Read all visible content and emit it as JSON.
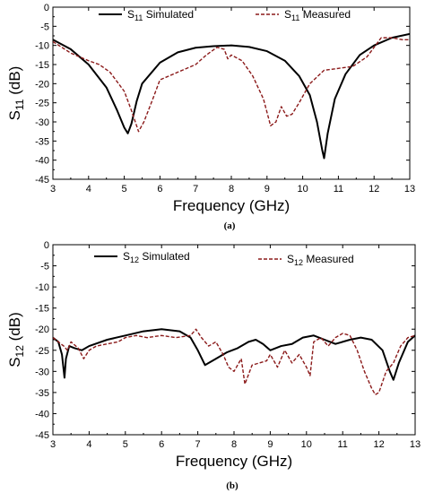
{
  "chart_data": [
    {
      "type": "line",
      "caption": "(a)",
      "xlabel": "Frequency (GHz)",
      "ylabel": {
        "main": "S",
        "sub": "11",
        "unit": " (dB)"
      },
      "xlim": [
        3,
        13
      ],
      "ylim": [
        -45,
        0
      ],
      "xticks": [
        "3",
        "4",
        "5",
        "6",
        "7",
        "8",
        "9",
        "10",
        "11",
        "12",
        "13"
      ],
      "yticks": [
        "0",
        "-5",
        "-10",
        "-15",
        "-20",
        "-25",
        "-30",
        "-35",
        "-40",
        "-45"
      ],
      "legend": [
        {
          "main": "S",
          "sub": "11",
          "rest": " Simulated",
          "style": "solid"
        },
        {
          "main": "S",
          "sub": "11",
          "rest": " Measured",
          "style": "dashed"
        }
      ],
      "series": [
        {
          "style": "solid",
          "color": "#000000",
          "x": [
            3.0,
            3.5,
            4.0,
            4.5,
            4.8,
            5.0,
            5.1,
            5.2,
            5.35,
            5.5,
            6.0,
            6.5,
            7.0,
            7.5,
            8.0,
            8.5,
            9.0,
            9.5,
            9.9,
            10.2,
            10.4,
            10.55,
            10.6,
            10.7,
            10.9,
            11.2,
            11.6,
            12.0,
            12.5,
            13.0
          ],
          "y": [
            -8.5,
            -11.0,
            -15.0,
            -21.0,
            -27.0,
            -31.5,
            -33.0,
            -30.5,
            -24.5,
            -20.0,
            -14.5,
            -11.8,
            -10.6,
            -10.2,
            -10.0,
            -10.4,
            -11.5,
            -14.0,
            -18.0,
            -23.0,
            -30.0,
            -37.5,
            -39.5,
            -33.0,
            -24.0,
            -17.5,
            -12.5,
            -10.0,
            -8.0,
            -7.0
          ]
        },
        {
          "style": "dashed",
          "color": "#8b1a1a",
          "x": [
            3.0,
            3.5,
            4.0,
            4.3,
            4.6,
            5.0,
            5.2,
            5.4,
            5.55,
            5.8,
            6.0,
            6.5,
            7.0,
            7.3,
            7.6,
            7.8,
            7.9,
            8.0,
            8.1,
            8.3,
            8.6,
            8.9,
            9.1,
            9.25,
            9.4,
            9.55,
            9.7,
            9.9,
            10.2,
            10.6,
            11.0,
            11.4,
            11.8,
            12.2,
            12.5,
            12.8,
            13.0
          ],
          "y": [
            -9.0,
            -12.0,
            -14.0,
            -15.0,
            -17.0,
            -22.0,
            -27.0,
            -32.5,
            -30.0,
            -24.0,
            -19.0,
            -17.0,
            -15.0,
            -12.5,
            -10.5,
            -11.0,
            -13.5,
            -12.5,
            -13.0,
            -14.0,
            -18.0,
            -24.0,
            -31.0,
            -30.0,
            -26.0,
            -28.5,
            -28.0,
            -25.0,
            -20.0,
            -16.5,
            -16.0,
            -15.5,
            -13.0,
            -8.0,
            -8.0,
            -8.5,
            -8.5
          ]
        }
      ]
    },
    {
      "type": "line",
      "caption": "(b)",
      "xlabel": "Frequency (GHz)",
      "ylabel": {
        "main": "S",
        "sub": "12",
        "unit": " (dB)"
      },
      "xlim": [
        3,
        13
      ],
      "ylim": [
        -45,
        0
      ],
      "xticks": [
        "3",
        "4",
        "5",
        "6",
        "7",
        "8",
        "9",
        "10",
        "11",
        "12",
        "13"
      ],
      "yticks": [
        "0",
        "-5",
        "-10",
        "-15",
        "-20",
        "-25",
        "-30",
        "-35",
        "-40",
        "-45"
      ],
      "legend": [
        {
          "main": "S",
          "sub": "12",
          "rest": " Simulated",
          "style": "solid"
        },
        {
          "main": "S",
          "sub": "12",
          "rest": " Measured",
          "style": "dashed"
        }
      ],
      "series": [
        {
          "style": "solid",
          "color": "#000000",
          "x": [
            3.0,
            3.15,
            3.25,
            3.32,
            3.36,
            3.45,
            3.6,
            3.8,
            4.0,
            4.5,
            5.0,
            5.5,
            6.0,
            6.5,
            6.8,
            7.0,
            7.2,
            7.5,
            7.8,
            8.1,
            8.4,
            8.6,
            8.8,
            9.0,
            9.3,
            9.6,
            9.9,
            10.2,
            10.5,
            10.8,
            11.2,
            11.5,
            11.8,
            12.1,
            12.3,
            12.4,
            12.55,
            12.8,
            13.0
          ],
          "y": [
            -22.0,
            -23.0,
            -26.0,
            -31.5,
            -27.0,
            -24.0,
            -24.5,
            -25.0,
            -24.0,
            -22.5,
            -21.5,
            -20.5,
            -20.0,
            -20.5,
            -22.0,
            -25.0,
            -28.5,
            -27.0,
            -25.5,
            -24.5,
            -23.0,
            -22.5,
            -23.5,
            -25.0,
            -24.0,
            -23.5,
            -22.0,
            -21.5,
            -22.5,
            -23.5,
            -22.5,
            -22.0,
            -22.5,
            -25.0,
            -30.0,
            -32.0,
            -28.0,
            -23.0,
            -21.5
          ]
        },
        {
          "style": "dashed",
          "color": "#8b1a1a",
          "x": [
            3.0,
            3.15,
            3.3,
            3.4,
            3.5,
            3.7,
            3.85,
            4.0,
            4.2,
            4.5,
            4.8,
            5.0,
            5.3,
            5.6,
            6.0,
            6.4,
            6.8,
            6.95,
            7.1,
            7.3,
            7.5,
            7.7,
            7.85,
            8.0,
            8.2,
            8.3,
            8.5,
            8.7,
            8.9,
            9.0,
            9.2,
            9.4,
            9.6,
            9.8,
            10.0,
            10.1,
            10.2,
            10.4,
            10.6,
            10.8,
            11.0,
            11.2,
            11.4,
            11.6,
            11.8,
            11.9,
            12.0,
            12.2,
            12.4,
            12.6,
            12.8,
            13.0
          ],
          "y": [
            -22.0,
            -23.0,
            -24.0,
            -25.0,
            -23.0,
            -24.5,
            -27.0,
            -25.0,
            -24.0,
            -23.5,
            -23.0,
            -22.0,
            -21.5,
            -22.0,
            -21.5,
            -22.0,
            -21.5,
            -20.0,
            -22.0,
            -24.0,
            -23.0,
            -26.0,
            -29.0,
            -30.0,
            -27.0,
            -33.0,
            -28.5,
            -28.0,
            -27.5,
            -26.0,
            -29.0,
            -25.0,
            -28.0,
            -26.0,
            -29.0,
            -31.0,
            -23.0,
            -22.0,
            -24.0,
            -22.0,
            -21.0,
            -21.5,
            -25.0,
            -30.0,
            -34.0,
            -35.5,
            -35.0,
            -30.0,
            -28.0,
            -24.0,
            -22.0,
            -21.5
          ]
        }
      ]
    }
  ]
}
